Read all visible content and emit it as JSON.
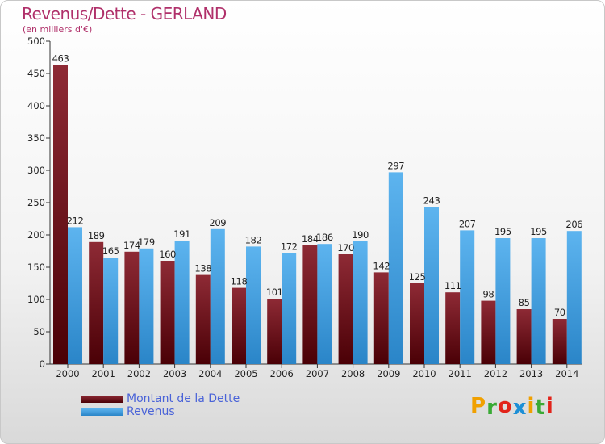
{
  "header": {
    "title": "Revenus/Dette - GERLAND",
    "subtitle": "(en milliers d'€)"
  },
  "legend": {
    "items": [
      {
        "label": "Montant de la Dette",
        "color": "#6b1118"
      },
      {
        "label": "Revenus",
        "color": "#3f9fe0"
      }
    ]
  },
  "logo": {
    "text": "Proxiti",
    "colors": [
      "#f0a000",
      "#3aaa35",
      "#e2231a",
      "#1d8fd6",
      "#f0a000",
      "#3aaa35",
      "#e2231a"
    ]
  },
  "chart_data": {
    "type": "bar",
    "title": "Revenus/Dette - GERLAND",
    "ylabel": "(en milliers d'€)",
    "ylim": [
      0,
      500
    ],
    "yticks": [
      0,
      50,
      100,
      150,
      200,
      250,
      300,
      350,
      400,
      450,
      500
    ],
    "grid": false,
    "legend_position": "bottom-left",
    "categories": [
      "2000",
      "2001",
      "2002",
      "2003",
      "2004",
      "2005",
      "2006",
      "2007",
      "2008",
      "2009",
      "2010",
      "2011",
      "2012",
      "2013",
      "2014"
    ],
    "series": [
      {
        "name": "Montant de la Dette",
        "color": "#6b1118",
        "values": [
          463,
          189,
          174,
          160,
          138,
          118,
          101,
          184,
          170,
          142,
          125,
          111,
          98,
          85,
          70
        ]
      },
      {
        "name": "Revenus",
        "color": "#3f9fe0",
        "values": [
          212,
          165,
          179,
          191,
          209,
          182,
          172,
          186,
          190,
          297,
          243,
          207,
          195,
          195,
          206
        ]
      }
    ]
  }
}
